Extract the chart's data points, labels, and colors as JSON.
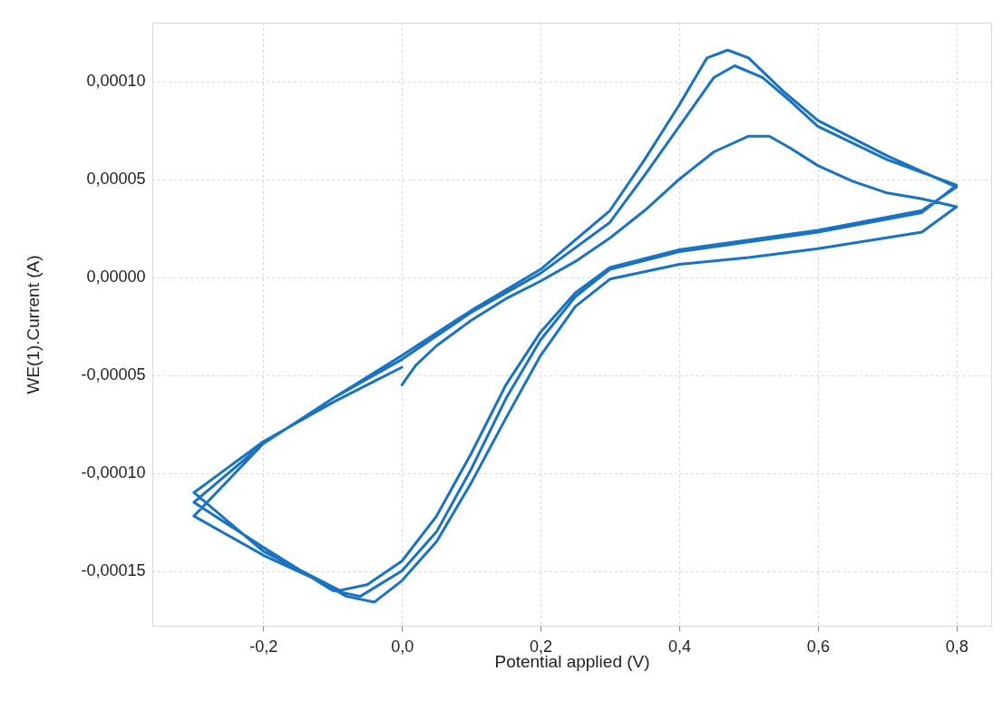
{
  "chart_data": {
    "type": "line",
    "xlabel": "Potential applied (V)",
    "ylabel": "WE(1).Current (A)",
    "xlim": [
      -0.36,
      0.85
    ],
    "ylim": [
      -0.000178,
      0.00013
    ],
    "xticks": [
      {
        "value": -0.2,
        "label": "-0,2"
      },
      {
        "value": 0,
        "label": "0,0"
      },
      {
        "value": 0.2,
        "label": "0,2"
      },
      {
        "value": 0.4,
        "label": "0,4"
      },
      {
        "value": 0.6,
        "label": "0,6"
      },
      {
        "value": 0.8,
        "label": "0,8"
      }
    ],
    "yticks": [
      {
        "value": -0.00015,
        "label": "-0,00015"
      },
      {
        "value": -0.0001,
        "label": "-0,00010"
      },
      {
        "value": -5e-05,
        "label": "-0,00005"
      },
      {
        "value": 0,
        "label": "0,00000"
      },
      {
        "value": 5e-05,
        "label": "0,00005"
      },
      {
        "value": 0.0001,
        "label": "0,00010"
      }
    ],
    "grid": true,
    "marker": "none",
    "line_style": "solid",
    "series": [
      {
        "color": "#1a73c0",
        "x": [
          0,
          0.02,
          0.05,
          0.1,
          0.15,
          0.2,
          0.25,
          0.3,
          0.35,
          0.4,
          0.45,
          0.5,
          0.53,
          0.56,
          0.6,
          0.65,
          0.7,
          0.75,
          0.8,
          0.75,
          0.6,
          0.5,
          0.4,
          0.3,
          0.25,
          0.2,
          0.15,
          0.1,
          0.05,
          0,
          -0.04,
          -0.08,
          -0.12,
          -0.2,
          -0.25,
          -0.3,
          -0.2,
          -0.1,
          0,
          0.1,
          0.2,
          0.3,
          0.35,
          0.4,
          0.45,
          0.48,
          0.52,
          0.56,
          0.6,
          0.7,
          0.8,
          0.75,
          0.6,
          0.5,
          0.4,
          0.3,
          0.25,
          0.2,
          0.15,
          0.1,
          0.05,
          0,
          -0.06,
          -0.1,
          -0.2,
          -0.3,
          -0.2,
          -0.1,
          0,
          0.1,
          0.2,
          0.3,
          0.35,
          0.4,
          0.44,
          0.47,
          0.5,
          0.55,
          0.6,
          0.7,
          0.8,
          0.75,
          0.6,
          0.5,
          0.4,
          0.3,
          0.25,
          0.2,
          0.15,
          0.1,
          0.05,
          0,
          -0.05,
          -0.09,
          -0.2,
          -0.3,
          -0.2,
          -0.1,
          -0.05,
          0
        ],
        "values": [
          -5.5e-05,
          -4.5e-05,
          -3.5e-05,
          -2.2e-05,
          -1.1e-05,
          -2e-06,
          8e-06,
          2e-05,
          3.4e-05,
          5e-05,
          6.4e-05,
          7.2e-05,
          7.2e-05,
          6.6e-05,
          5.7e-05,
          4.9e-05,
          4.3e-05,
          4e-05,
          3.6e-05,
          2.3e-05,
          1.46e-05,
          1e-05,
          6.6e-06,
          -1e-06,
          -1.5e-05,
          -4e-05,
          -7.2e-05,
          -0.000105,
          -0.000135,
          -0.000155,
          -0.000166,
          -0.000163,
          -0.000155,
          -0.000142,
          -0.000132,
          -0.000122,
          -8.5e-05,
          -6.2e-05,
          -4.2e-05,
          -1.8e-05,
          2e-06,
          2.8e-05,
          5.2e-05,
          7.7e-05,
          0.000102,
          0.000108,
          0.000102,
          9e-05,
          7.7e-05,
          6e-05,
          4.7e-05,
          3.3e-05,
          2.3e-05,
          1.8e-05,
          1.3e-05,
          4e-06,
          -1e-05,
          -3.2e-05,
          -6.2e-05,
          -9.8e-05,
          -0.00013,
          -0.00015,
          -0.000163,
          -0.00016,
          -0.000138,
          -0.000115,
          -8.5e-05,
          -6.2e-05,
          -4e-05,
          -1.7e-05,
          4e-06,
          3.4e-05,
          6e-05,
          8.8e-05,
          0.000112,
          0.000116,
          0.000112,
          9.5e-05,
          8e-05,
          6.2e-05,
          4.6e-05,
          3.4e-05,
          2.4e-05,
          1.9e-05,
          1.4e-05,
          5e-06,
          -8e-06,
          -2.8e-05,
          -5.5e-05,
          -9e-05,
          -0.000122,
          -0.000145,
          -0.000157,
          -0.00016,
          -0.00014,
          -0.00011,
          -8.4e-05,
          -6.4e-05,
          -5.5e-05,
          -4.6e-05
        ]
      }
    ]
  }
}
